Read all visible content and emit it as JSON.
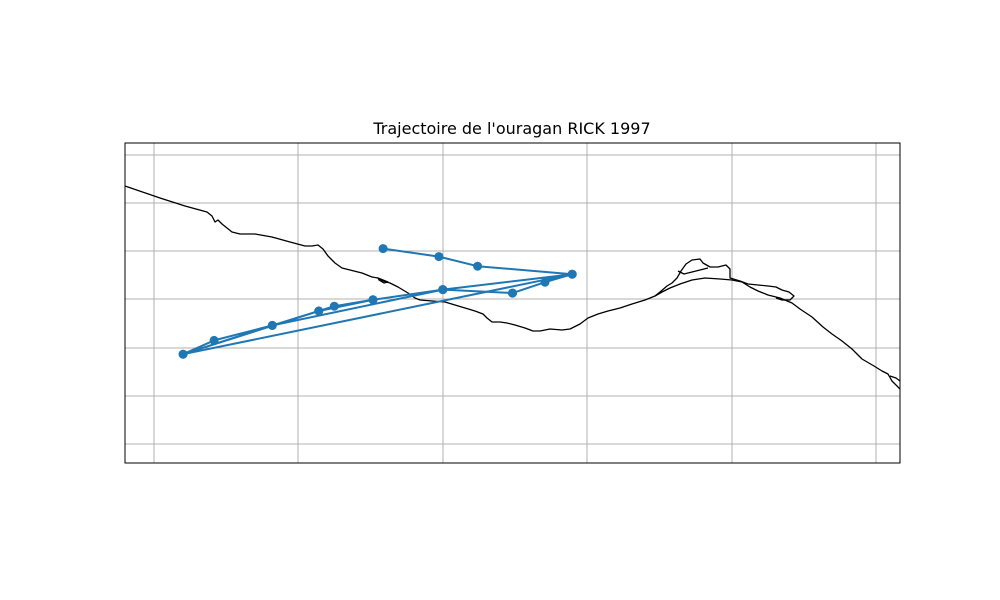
{
  "chart_data": {
    "type": "line",
    "title": "Trajectoire de l'ouragan RICK 1997",
    "xlabel": "",
    "ylabel": "",
    "grid": true,
    "legend": "none",
    "series": [
      {
        "color": "#1f77b4",
        "marker": "circle",
        "points": [
          {
            "x": 0.333,
            "y": 0.33
          },
          {
            "x": 0.405,
            "y": 0.355
          },
          {
            "x": 0.455,
            "y": 0.385
          },
          {
            "x": 0.577,
            "y": 0.41
          },
          {
            "x": 0.542,
            "y": 0.435
          },
          {
            "x": 0.5,
            "y": 0.469
          },
          {
            "x": 0.41,
            "y": 0.458
          },
          {
            "x": 0.32,
            "y": 0.49
          },
          {
            "x": 0.27,
            "y": 0.51
          },
          {
            "x": 0.25,
            "y": 0.525
          },
          {
            "x": 0.19,
            "y": 0.57
          },
          {
            "x": 0.115,
            "y": 0.617
          },
          {
            "x": 0.075,
            "y": 0.66
          },
          {
            "x": 0.25,
            "y": 0.525
          },
          {
            "x": 0.32,
            "y": 0.49
          },
          {
            "x": 0.41,
            "y": 0.458
          },
          {
            "x": 0.577,
            "y": 0.41
          },
          {
            "x": 0.075,
            "y": 0.66
          },
          {
            "x": 0.19,
            "y": 0.57
          },
          {
            "x": 0.41,
            "y": 0.458
          },
          {
            "x": 0.5,
            "y": 0.469
          }
        ]
      }
    ]
  }
}
